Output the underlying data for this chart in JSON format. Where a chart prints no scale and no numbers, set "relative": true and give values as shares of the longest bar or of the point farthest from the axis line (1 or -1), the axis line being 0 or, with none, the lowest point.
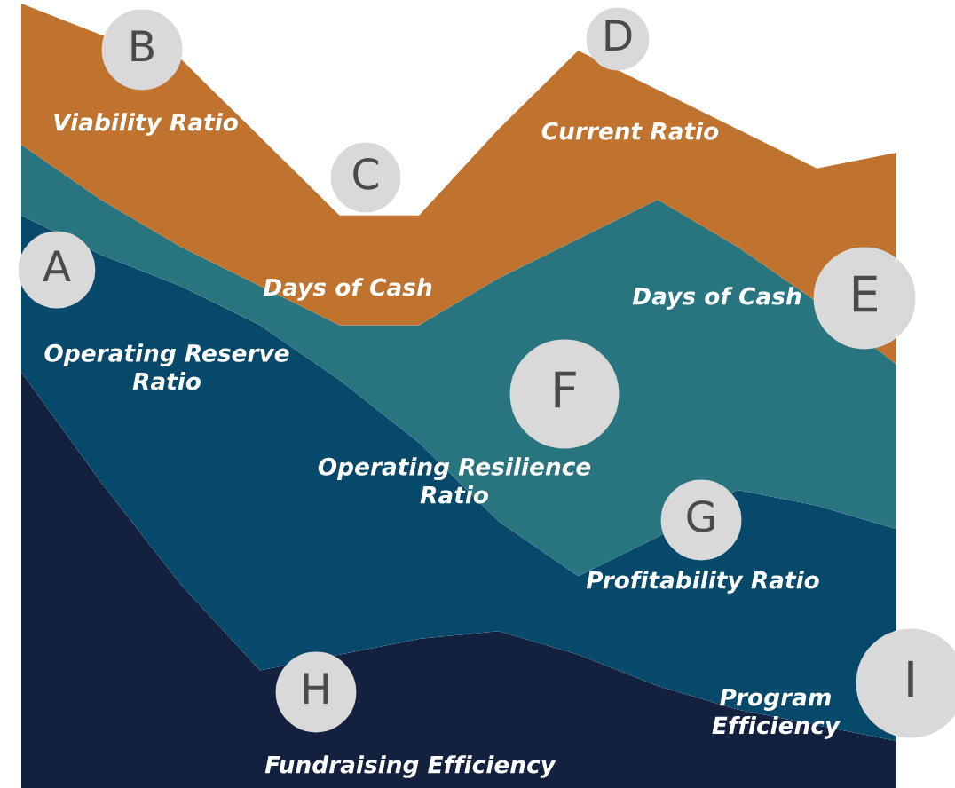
{
  "chart_data": {
    "type": "area",
    "stacked": true,
    "relative": true,
    "categories": [
      null,
      null,
      null,
      null,
      null,
      null,
      null,
      null,
      null,
      null,
      null,
      null
    ],
    "series": [
      {
        "color": "#13213f",
        "values": [
          0.53,
          0.39,
          0.26,
          0.15,
          0.17,
          0.19,
          0.2,
          0.17,
          0.13,
          0.1,
          0.08,
          0.06
        ]
      },
      {
        "color": "#07496b",
        "values": [
          0.2,
          0.29,
          0.38,
          0.44,
          0.35,
          0.25,
          0.14,
          0.1,
          0.19,
          0.28,
          0.28,
          0.27
        ]
      },
      {
        "color": "#28757f",
        "values": [
          0.09,
          0.07,
          0.05,
          0.05,
          0.07,
          0.15,
          0.31,
          0.43,
          0.43,
          0.31,
          0.26,
          0.21
        ]
      },
      {
        "color": "#bf732f",
        "values": [
          0.18,
          0.21,
          0.24,
          0.19,
          0.14,
          0.14,
          0.19,
          0.24,
          0.14,
          0.15,
          0.17,
          0.27
        ]
      }
    ],
    "annotations": [
      "B",
      "Viability Ratio",
      "C",
      "Days of Cash",
      "D",
      "Current Ratio",
      "A",
      "Operating Reserve\nRatio",
      "E",
      "Days of Cash",
      "F",
      "Operating Resilience\nRatio",
      "G",
      "Profitability Ratio",
      "H",
      "Fundraising Efficiency",
      "I",
      "Program\nEfficiency"
    ],
    "legend": false
  }
}
